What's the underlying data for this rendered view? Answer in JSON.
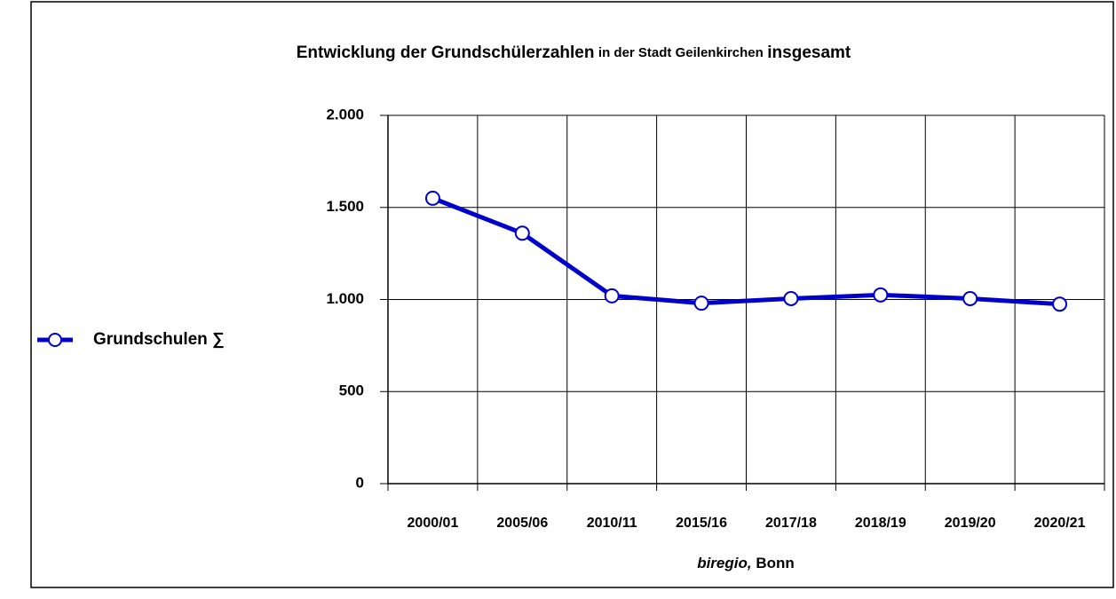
{
  "chart_data": {
    "type": "line",
    "title": [
      "Entwicklung der Grundschülerzahlen",
      "in der Stadt Geilenkirchen",
      "insgesamt"
    ],
    "x_label": [
      "biregio,",
      "Bonn"
    ],
    "categories": [
      "2000/01",
      "2005/06",
      "2010/11",
      "2015/16",
      "2017/18",
      "2018/19",
      "2019/20",
      "2020/21"
    ],
    "series": [
      {
        "name": "Grundschulen ∑",
        "color": "#0000cc",
        "values": [
          1550,
          1360,
          1020,
          980,
          1005,
          1025,
          1005,
          975
        ]
      }
    ],
    "ylim": [
      0,
      2000
    ],
    "yticks": [
      0,
      500,
      {
        "value": 1000,
        "label": "1.000"
      },
      {
        "value": 1500,
        "label": "1.500"
      },
      {
        "value": 2000,
        "label": "2.000"
      }
    ],
    "grid": true,
    "legend": "left"
  }
}
